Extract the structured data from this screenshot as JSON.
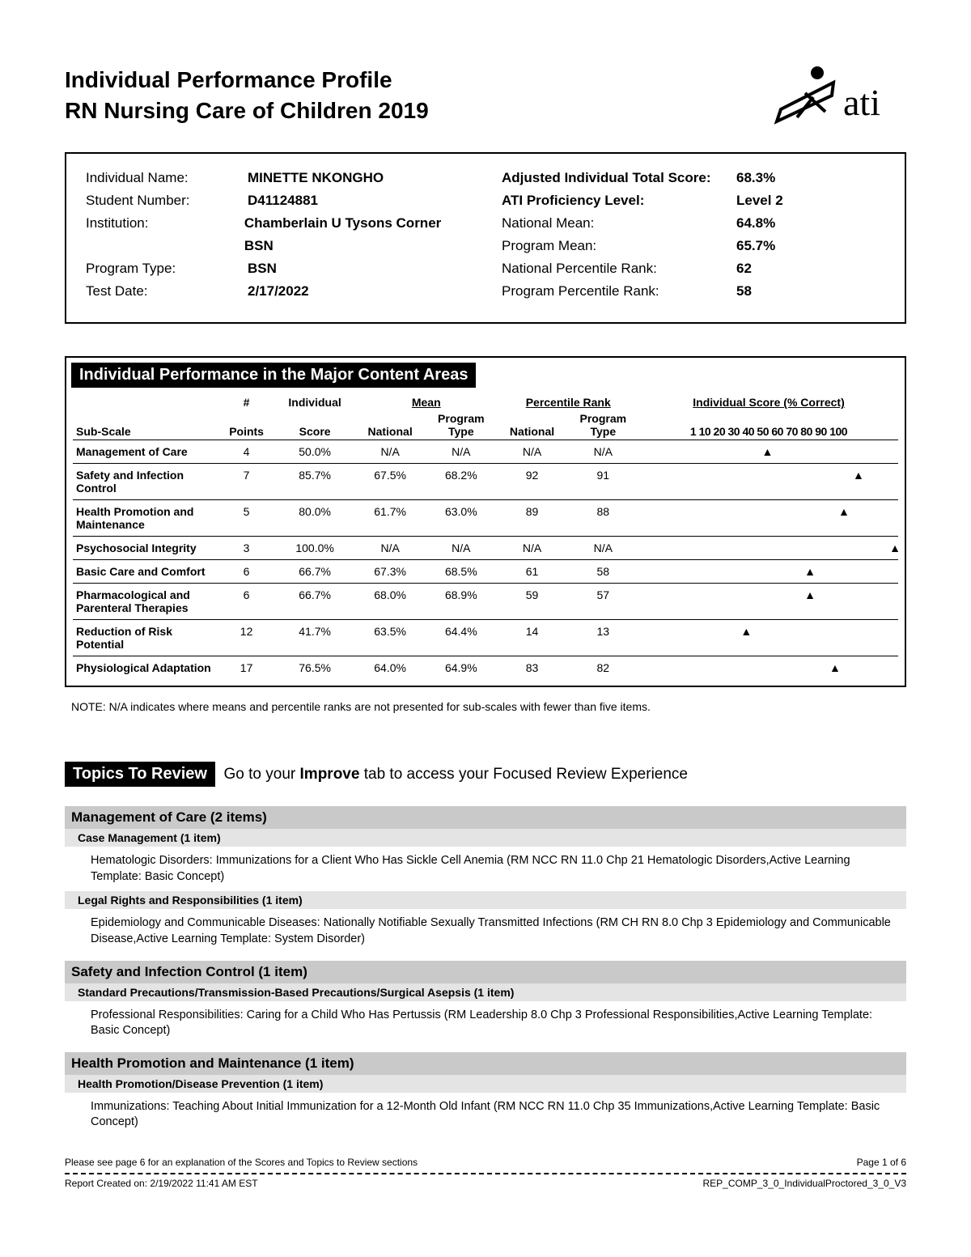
{
  "header": {
    "title1": "Individual Performance Profile",
    "title2": "RN Nursing Care of Children 2019"
  },
  "info_left": [
    {
      "label": "Individual Name:",
      "value": "MINETTE  NKONGHO",
      "bold": true
    },
    {
      "label": "Student Number:",
      "value": "D41124881",
      "bold": true
    },
    {
      "label": "Institution:",
      "value": "Chamberlain U Tysons Corner BSN",
      "bold": true
    },
    {
      "label": "Program Type:",
      "value": "BSN",
      "bold": true
    },
    {
      "label": "Test Date:",
      "value": "2/17/2022",
      "bold": true
    }
  ],
  "info_right": [
    {
      "label": "Adjusted Individual Total Score:",
      "value": "68.3%",
      "lbold": true,
      "vbold": true
    },
    {
      "label": "ATI Proficiency Level:",
      "value": "Level 2",
      "lbold": true,
      "vbold": true
    },
    {
      "label": "National Mean:",
      "value": "64.8%",
      "lbold": false,
      "vbold": true
    },
    {
      "label": "Program Mean:",
      "value": "65.7%",
      "lbold": false,
      "vbold": true
    },
    {
      "label": "National Percentile Rank:",
      "value": "62",
      "lbold": false,
      "vbold": true
    },
    {
      "label": "Program Percentile Rank:",
      "value": "58",
      "lbold": false,
      "vbold": true
    }
  ],
  "section_title": "Individual Performance in the Major Content Areas",
  "columns": {
    "sub_scale": "Sub-Scale",
    "points": "#\nPoints",
    "individual": "Individual\nScore",
    "mean": "Mean",
    "national": "National",
    "program_type": "Program\nType",
    "percentile": "Percentile Rank",
    "score_pct": "Individual Score (% Correct)"
  },
  "axis_ticks": [
    1,
    10,
    20,
    30,
    40,
    50,
    60,
    70,
    80,
    90,
    100
  ],
  "rows": [
    {
      "name": "Management of Care",
      "points": 4,
      "score": "50.0%",
      "nat": "N/A",
      "prog": "N/A",
      "natp": "N/A",
      "progp": "N/A",
      "pct": 50
    },
    {
      "name": "Safety and Infection Control",
      "points": 7,
      "score": "85.7%",
      "nat": "67.5%",
      "prog": "68.2%",
      "natp": "92",
      "progp": "91",
      "pct": 85.7
    },
    {
      "name": "Health Promotion and Maintenance",
      "points": 5,
      "score": "80.0%",
      "nat": "61.7%",
      "prog": "63.0%",
      "natp": "89",
      "progp": "88",
      "pct": 80
    },
    {
      "name": "Psychosocial Integrity",
      "points": 3,
      "score": "100.0%",
      "nat": "N/A",
      "prog": "N/A",
      "natp": "N/A",
      "progp": "N/A",
      "pct": 100
    },
    {
      "name": "Basic Care and Comfort",
      "points": 6,
      "score": "66.7%",
      "nat": "67.3%",
      "prog": "68.5%",
      "natp": "61",
      "progp": "58",
      "pct": 66.7
    },
    {
      "name": "Pharmacological and Parenteral Therapies",
      "points": 6,
      "score": "66.7%",
      "nat": "68.0%",
      "prog": "68.9%",
      "natp": "59",
      "progp": "57",
      "pct": 66.7
    },
    {
      "name": "Reduction of Risk Potential",
      "points": 12,
      "score": "41.7%",
      "nat": "63.5%",
      "prog": "64.4%",
      "natp": "14",
      "progp": "13",
      "pct": 41.7
    },
    {
      "name": "Physiological Adaptation",
      "points": 17,
      "score": "76.5%",
      "nat": "64.0%",
      "prog": "64.9%",
      "natp": "83",
      "progp": "82",
      "pct": 76.5
    }
  ],
  "note": "NOTE: N/A indicates where means and percentile ranks are not presented for sub-scales with fewer than five items.",
  "topics": {
    "band": "Topics To Review",
    "tail1": "Go to your ",
    "tail_bold": "Improve",
    "tail2": " tab to access your Focused Review Experience",
    "sections": [
      {
        "title": "Management of Care (2 items)",
        "subs": [
          {
            "title": "Case Management (1 item)",
            "detail": "Hematologic Disorders: Immunizations for a Client Who Has Sickle Cell Anemia (RM NCC RN 11.0 Chp 21 Hematologic Disorders,Active Learning Template: Basic Concept)"
          },
          {
            "title": "Legal Rights and Responsibilities (1 item)",
            "detail": "Epidemiology and Communicable Diseases: Nationally Notifiable Sexually Transmitted Infections (RM CH RN 8.0 Chp 3 Epidemiology and Communicable Disease,Active Learning Template: System Disorder)"
          }
        ]
      },
      {
        "title": "Safety and Infection Control (1 item)",
        "subs": [
          {
            "title": "Standard Precautions/Transmission-Based Precautions/Surgical Asepsis (1 item)",
            "detail": "Professional Responsibilities: Caring for a Child Who Has Pertussis (RM Leadership 8.0 Chp 3 Professional Responsibilities,Active Learning Template: Basic Concept)"
          }
        ]
      },
      {
        "title": "Health Promotion and Maintenance (1 item)",
        "subs": [
          {
            "title": "Health Promotion/Disease Prevention (1 item)",
            "detail": "Immunizations: Teaching About Initial Immunization for a 12-Month Old Infant (RM NCC RN 11.0 Chp 35 Immunizations,Active Learning Template: Basic Concept)"
          }
        ]
      }
    ]
  },
  "footer": {
    "explain": "Please see page 6 for an explanation of the Scores and Topics to Review sections",
    "page": "Page 1 of 6",
    "created": "Report Created on: 2/19/2022 11:41 AM EST",
    "code": "REP_COMP_3_0_IndividualProctored_3_0_V3"
  },
  "colors": {
    "gray_bar": "#c9c9c9",
    "gray_sub": "#e4e4e4",
    "text": "#000000",
    "bg": "#ffffff"
  }
}
